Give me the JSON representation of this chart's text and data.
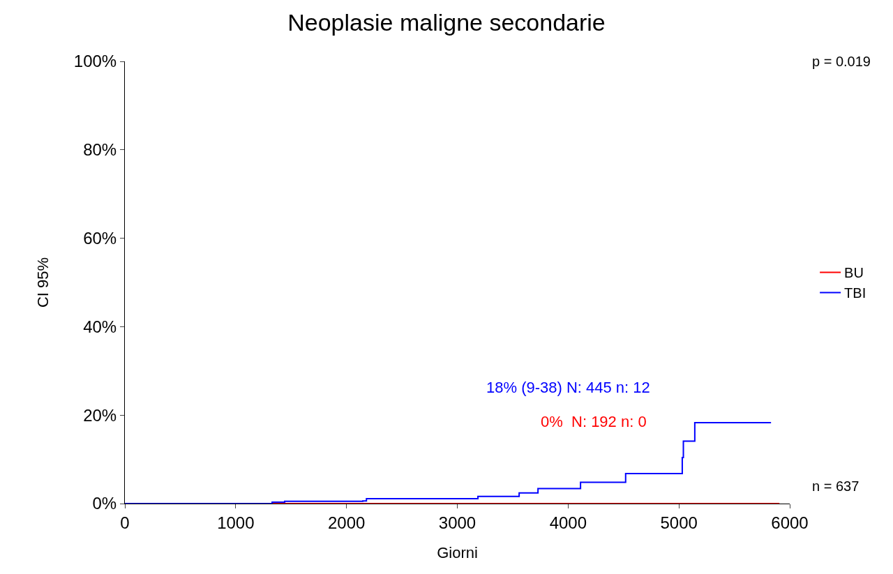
{
  "chart_data": {
    "type": "step",
    "title": "Neoplasie maligne secondarie",
    "xlabel": "Giorni",
    "ylabel": "CI 95%",
    "xlim": [
      0,
      6000
    ],
    "xticks": [
      0,
      1000,
      2000,
      3000,
      4000,
      5000,
      6000
    ],
    "ylim": [
      0,
      100
    ],
    "yticks": [
      {
        "value": 0,
        "label": "0%"
      },
      {
        "value": 20,
        "label": "20%"
      },
      {
        "value": 40,
        "label": "40%"
      },
      {
        "value": 60,
        "label": "60%"
      },
      {
        "value": 80,
        "label": "80%"
      },
      {
        "value": 100,
        "label": "100%"
      }
    ],
    "series": [
      {
        "name": "BU",
        "color": "#ff0000",
        "x": [
          0,
          5907
        ],
        "values": [
          0,
          0
        ]
      },
      {
        "name": "TBI",
        "color": "#0000ff",
        "x": [
          0,
          1329,
          1442,
          2147,
          2180,
          3186,
          3558,
          3728,
          4112,
          4519,
          5030,
          5040,
          5143,
          5831
        ],
        "values": [
          0,
          0.3,
          0.5,
          0.6,
          1.1,
          1.6,
          2.4,
          3.4,
          4.8,
          6.8,
          10.4,
          14.1,
          18.3,
          18.3
        ]
      }
    ],
    "annotations": [
      "18% (9-38) N: 445 n: 12",
      "0%  N: 192 n: 0",
      "p = 0.019",
      "n = 637"
    ],
    "legend": "right",
    "grid": false,
    "marker": "none",
    "line_style": "solid"
  }
}
